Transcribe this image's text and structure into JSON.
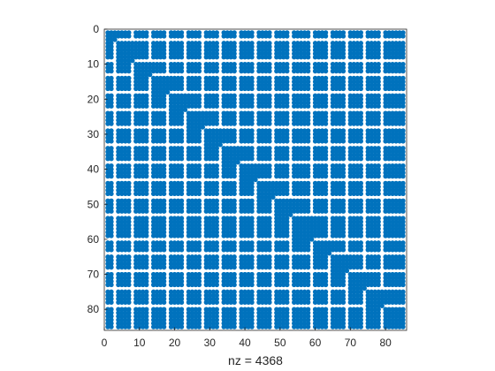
{
  "chart_data": {
    "type": "spy",
    "title": "",
    "xlabel": "nz = 4368",
    "ylabel": "",
    "xlim": [
      0,
      86
    ],
    "ylim": [
      0,
      86
    ],
    "y_reversed": true,
    "xticks": [
      0,
      10,
      20,
      30,
      40,
      50,
      60,
      70,
      80
    ],
    "yticks": [
      0,
      10,
      20,
      30,
      40,
      50,
      60,
      70,
      80
    ],
    "grid": false,
    "legend": "none",
    "matrix_size": 85,
    "nnz": 4368,
    "marker_color": "#0072BD",
    "blocks": [
      {
        "col_range": [
          1,
          3
        ],
        "row_range": [
          1,
          3
        ]
      },
      {
        "col_range": [
          4,
          8
        ],
        "row_range": [
          4,
          9
        ]
      },
      {
        "col_range": [
          9,
          13
        ],
        "row_range": [
          10,
          13
        ]
      },
      {
        "col_range": [
          14,
          18
        ],
        "row_range": [
          14,
          18
        ]
      },
      {
        "col_range": [
          19,
          23
        ],
        "row_range": [
          19,
          23
        ]
      },
      {
        "col_range": [
          24,
          28
        ],
        "row_range": [
          24,
          28
        ]
      },
      {
        "col_range": [
          29,
          33
        ],
        "row_range": [
          29,
          33
        ]
      },
      {
        "col_range": [
          34,
          38
        ],
        "row_range": [
          34,
          38
        ]
      },
      {
        "col_range": [
          39,
          43
        ],
        "row_range": [
          39,
          43
        ]
      },
      {
        "col_range": [
          44,
          48
        ],
        "row_range": [
          44,
          48
        ]
      },
      {
        "col_range": [
          49,
          53
        ],
        "row_range": [
          49,
          53
        ]
      },
      {
        "col_range": [
          54,
          59
        ],
        "row_range": [
          54,
          60
        ]
      },
      {
        "col_range": [
          60,
          64
        ],
        "row_range": [
          61,
          64
        ]
      },
      {
        "col_range": [
          65,
          69
        ],
        "row_range": [
          65,
          69
        ]
      },
      {
        "col_range": [
          70,
          74
        ],
        "row_range": [
          70,
          74
        ]
      },
      {
        "col_range": [
          75,
          79
        ],
        "row_range": [
          75,
          79
        ]
      },
      {
        "col_range": [
          80,
          85
        ],
        "row_range": [
          80,
          85
        ]
      }
    ]
  }
}
